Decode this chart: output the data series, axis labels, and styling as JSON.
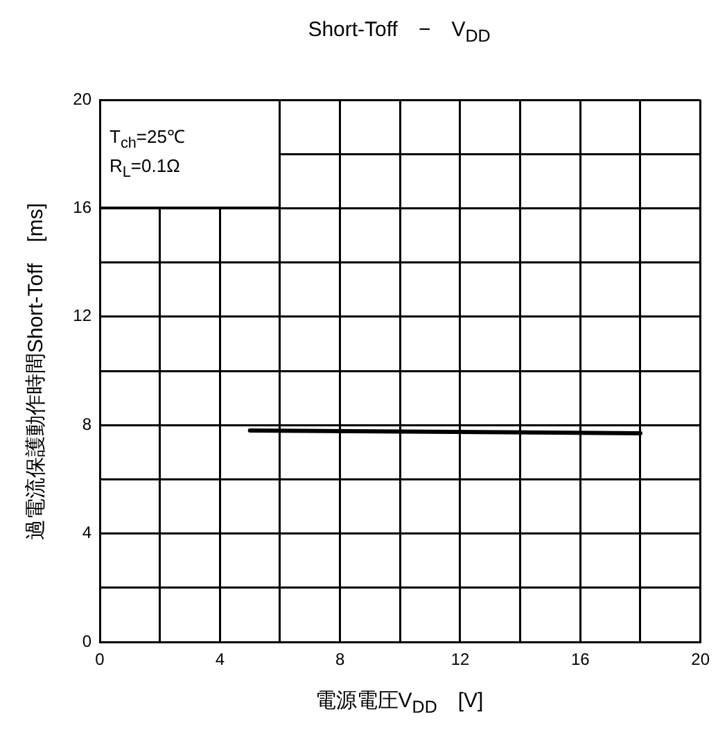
{
  "chart_data": {
    "type": "line",
    "title": "Short-Toff　−　V$_{DD}$",
    "xlabel": "電源電圧V$_{DD}$　[V]",
    "ylabel": "過電流保護動作時間Short-Toff　[ms]",
    "annotations": [
      "T$_{ch}$=25℃",
      "R$_{L}$=0.1Ω"
    ],
    "series": [
      {
        "color": "#000000",
        "x": [
          5,
          18
        ],
        "values": [
          7.8,
          7.7
        ]
      }
    ],
    "xlim": [
      0,
      20
    ],
    "xticks": [
      0,
      {
        "value": 2,
        "label": null
      },
      4,
      {
        "value": 6,
        "label": null
      },
      8,
      {
        "value": 10,
        "label": null
      },
      12,
      {
        "value": 14,
        "label": null
      },
      16,
      {
        "value": 18,
        "label": null
      },
      20
    ],
    "ylim": [
      0,
      20
    ],
    "yticks": [
      0,
      {
        "value": 2,
        "label": null
      },
      4,
      {
        "value": 6,
        "label": null
      },
      8,
      {
        "value": 10,
        "label": null
      },
      12,
      {
        "value": 14,
        "label": null
      },
      16,
      {
        "value": 18,
        "label": null
      },
      20
    ],
    "grid": true,
    "legend": false,
    "marker": "none",
    "line_style": "solid"
  }
}
